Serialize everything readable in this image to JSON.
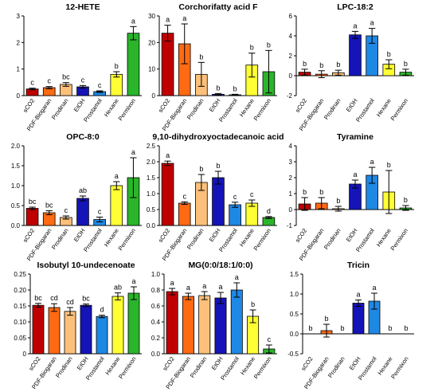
{
  "colors": {
    "bar_colors": [
      "#c00000",
      "#ff6a13",
      "#fdc07a",
      "#1414b8",
      "#1e88e5",
      "#ffff33",
      "#2bb52b"
    ],
    "axis": "#000000",
    "error_bar": "#000000"
  },
  "chart_data": [
    {
      "type": "bar",
      "title": "12-HETE",
      "categories": [
        "sCO2",
        "PDF-Biogaran",
        "Prodinan",
        "EtOH",
        "Prostamol",
        "Hexane",
        "Permixon"
      ],
      "values": [
        0.25,
        0.3,
        0.42,
        0.33,
        0.15,
        0.8,
        2.35
      ],
      "errors": [
        0.03,
        0.04,
        0.07,
        0.05,
        0.03,
        0.1,
        0.25
      ],
      "letters": [
        "c",
        "c",
        "bc",
        "c",
        "c",
        "b",
        "a"
      ],
      "ylim": [
        0,
        3
      ],
      "yticks": [
        0,
        1,
        2,
        3
      ]
    },
    {
      "type": "bar",
      "title": "Corchorifatty acid F",
      "categories": [
        "sCO2",
        "PDF-Biogaran",
        "Prodinan",
        "EtOH",
        "Prostamol",
        "Hexane",
        "Permixon"
      ],
      "values": [
        23.5,
        19.5,
        8,
        0.5,
        0.3,
        11.5,
        9
      ],
      "errors": [
        3,
        7.5,
        4.5,
        0.3,
        0.2,
        4.5,
        8
      ],
      "letters": [
        "a",
        "a",
        "b",
        "b",
        "b",
        "b",
        "b"
      ],
      "ylim": [
        0,
        30
      ],
      "yticks": [
        0,
        10,
        20,
        30
      ]
    },
    {
      "type": "bar",
      "title": "LPC-18:2",
      "categories": [
        "sCO2",
        "PDF-Biogaran",
        "Prodinan",
        "EtOH",
        "Prostamol",
        "Hexane",
        "Permixon"
      ],
      "values": [
        0.35,
        0.15,
        0.3,
        4.1,
        4,
        1.15,
        0.35
      ],
      "errors": [
        0.3,
        0.35,
        0.25,
        0.35,
        0.75,
        0.45,
        0.3
      ],
      "letters": [
        "b",
        "b",
        "b",
        "a",
        "a",
        "b",
        "b"
      ],
      "ylim": [
        -2,
        6
      ],
      "yticks": [
        -2,
        0,
        2,
        4,
        6
      ]
    },
    {
      "type": "bar",
      "title": "OPC-8:0",
      "categories": [
        "sCO2",
        "PDF-Biogaran",
        "Prodinan",
        "EtOH",
        "Prostamol",
        "Hexane",
        "Permixon"
      ],
      "values": [
        0.43,
        0.32,
        0.2,
        0.68,
        0.15,
        1,
        1.2
      ],
      "errors": [
        0.03,
        0.05,
        0.04,
        0.06,
        0.06,
        0.1,
        0.5
      ],
      "letters": [
        "bc",
        "bc",
        "c",
        "ab",
        "c",
        "a",
        "a"
      ],
      "ylim": [
        0,
        2
      ],
      "yticks": [
        0,
        0.5,
        1,
        1.5,
        2
      ],
      "yticklabels": [
        "0.0",
        "0.5",
        "1.0",
        "1.5",
        "2.0"
      ]
    },
    {
      "type": "bar",
      "title": "9,10-dihydroxyoctadecanoic acid",
      "categories": [
        "sCO2",
        "PDF-Biogaran",
        "Prodinan",
        "EtOH",
        "Prostamol",
        "Hexane",
        "Permixon"
      ],
      "values": [
        1.95,
        0.7,
        1.35,
        1.5,
        0.65,
        0.7,
        0.25
      ],
      "errors": [
        0.07,
        0.04,
        0.25,
        0.2,
        0.08,
        0.1,
        0.03
      ],
      "letters": [
        "a",
        "c",
        "b",
        "b",
        "c",
        "c",
        "d"
      ],
      "ylim": [
        0,
        2.5
      ],
      "yticks": [
        0,
        0.5,
        1,
        1.5,
        2,
        2.5
      ],
      "yticklabels": [
        "0.0",
        "0.5",
        "1.0",
        "1.5",
        "2.0",
        "2.5"
      ]
    },
    {
      "type": "bar",
      "title": "Tyramine",
      "categories": [
        "sCO2",
        "PDF-Biogaran",
        "Prodinan",
        "EtOH",
        "Prostamol",
        "Hexane",
        "Permixon"
      ],
      "values": [
        0.35,
        0.4,
        0.05,
        1.6,
        2.15,
        1.1,
        0.1
      ],
      "errors": [
        0.4,
        0.35,
        0.15,
        0.25,
        0.5,
        1.35,
        0.15
      ],
      "letters": [
        "b",
        "b",
        "b",
        "a",
        "a",
        "b",
        "b"
      ],
      "ylim": [
        -1,
        4
      ],
      "yticks": [
        -1,
        0,
        1,
        2,
        3,
        4
      ]
    },
    {
      "type": "bar",
      "title": "Isobutyl 10-undecenoate",
      "categories": [
        "sCO2",
        "PDF-Biogaran",
        "Prodinan",
        "EtOH",
        "Prostamol",
        "Hexane",
        "Permixon"
      ],
      "values": [
        0.152,
        0.145,
        0.133,
        0.152,
        0.117,
        0.18,
        0.19
      ],
      "errors": [
        0.006,
        0.012,
        0.012,
        0.004,
        0.004,
        0.011,
        0.02
      ],
      "letters": [
        "bc",
        "cd",
        "cd",
        "bc",
        "d",
        "ab",
        "a"
      ],
      "ylim": [
        0,
        0.25
      ],
      "yticks": [
        0,
        0.05,
        0.1,
        0.15,
        0.2,
        0.25
      ],
      "yticklabels": [
        "0",
        "0.05",
        "0.10",
        "0.15",
        "0.20",
        "0.25"
      ]
    },
    {
      "type": "bar",
      "title": "MG(0:0/18:1/0:0)",
      "categories": [
        "sCO2",
        "PDF-Biogaran",
        "Prodinan",
        "EtOH",
        "Prostamol",
        "Hexane",
        "Permixon"
      ],
      "values": [
        0.78,
        0.72,
        0.73,
        0.7,
        0.8,
        0.47,
        0.06
      ],
      "errors": [
        0.04,
        0.04,
        0.05,
        0.07,
        0.09,
        0.08,
        0.05
      ],
      "letters": [
        "a",
        "a",
        "a",
        "a",
        "a",
        "b",
        "c"
      ],
      "ylim": [
        0,
        1
      ],
      "yticks": [
        0,
        0.2,
        0.4,
        0.6,
        0.8,
        1
      ],
      "yticklabels": [
        "0.0",
        "0.2",
        "0.4",
        "0.6",
        "0.8",
        "1.0"
      ]
    },
    {
      "type": "bar",
      "title": "Tricin",
      "categories": [
        "sCO2",
        "PDF-Biogaran",
        "Prodinan",
        "EtOH",
        "Prostamol",
        "Hexane",
        "Permixon"
      ],
      "values": [
        0,
        0.08,
        0,
        0.77,
        0.82,
        0,
        0
      ],
      "errors": [
        0,
        0.16,
        0,
        0.08,
        0.2,
        0,
        0
      ],
      "letters": [
        "b",
        "b",
        "b",
        "a",
        "a",
        "b",
        "b"
      ],
      "ylim": [
        -0.5,
        1.5
      ],
      "yticks": [
        -0.5,
        0,
        0.5,
        1,
        1.5
      ],
      "yticklabels": [
        "-0.5",
        "0.0",
        "0.5",
        "1.0",
        "1.5"
      ]
    }
  ]
}
